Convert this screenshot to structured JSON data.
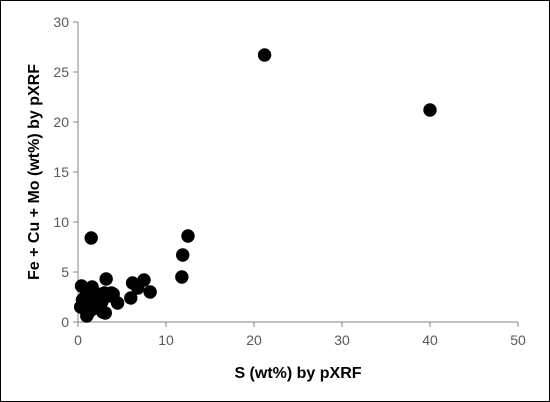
{
  "chart_data": {
    "type": "scatter",
    "title": "",
    "xlabel": "S (wt%) by pXRF",
    "ylabel": "Fe + Cu + Mo (wt%) by pXRF",
    "xlim": [
      0,
      50
    ],
    "ylim": [
      0,
      30
    ],
    "xticks": [
      0,
      10,
      20,
      30,
      40,
      50
    ],
    "yticks": [
      0,
      5,
      10,
      15,
      20,
      25,
      30
    ],
    "grid": false,
    "legend": "none",
    "marker_color": "#000000",
    "series": [
      {
        "x": [
          0.3,
          0.5,
          0.8,
          0.4,
          0.7,
          1.0,
          1.2,
          1.5,
          1.6,
          1.8,
          2.0,
          2.2,
          2.5,
          2.7,
          2.8,
          3.0,
          3.2,
          3.5,
          3.8,
          4.0,
          4.5,
          0.9,
          1.3,
          3.1,
          6.0,
          6.2,
          6.8,
          7.5,
          8.2,
          11.8,
          11.9,
          12.5,
          1.5,
          21.2,
          40.0,
          0.6,
          1.1
        ],
        "y": [
          1.5,
          2.2,
          2.5,
          3.6,
          1.9,
          0.6,
          3.0,
          1.2,
          3.5,
          2.0,
          1.5,
          2.8,
          2.5,
          2.0,
          1.0,
          2.9,
          4.3,
          2.6,
          2.9,
          2.8,
          1.9,
          1.2,
          2.3,
          0.9,
          2.4,
          3.9,
          3.4,
          4.2,
          3.0,
          4.5,
          6.7,
          8.6,
          8.4,
          26.7,
          21.2,
          1.4,
          0.8
        ]
      }
    ]
  }
}
